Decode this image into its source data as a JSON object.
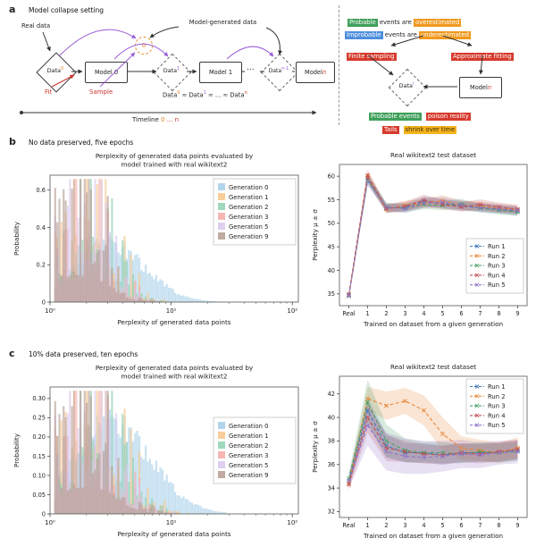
{
  "figure": {
    "panel_a": {
      "label": "a",
      "title": "Model collapse setting",
      "flow": {
        "real_data": "Real data",
        "fit": "Fit",
        "sample": "Sample",
        "model_generated": "Model-generated data",
        "nodes": {
          "data0_base": "Data",
          "data0_sup": "0",
          "model0": "Model 0",
          "circle0": "0",
          "data1_base": "Data",
          "data1_sup": "1",
          "model1": "Model 1",
          "dots": "...",
          "datan1_base": "Data",
          "datan1_sup": "n-1",
          "modeln_base": "Model ",
          "modeln_var": "n"
        },
        "equation": {
          "p1": "Data",
          "s1": "0",
          "p2": " ≈ Data",
          "s2": "1",
          "p3": " ≈ ... ≈ Data",
          "s3": "n"
        },
        "timeline": {
          "word": "Timeline ",
          "zero": "0",
          "dots": " ... ",
          "n": "n"
        }
      },
      "insight": {
        "line1": {
          "hl1": "Probable",
          "mid": " events are ",
          "hl2": "overestimated"
        },
        "line2": {
          "hl1": "Improbable",
          "mid": " events are ",
          "hl2": "underestimated"
        },
        "finite": "Finite sampling",
        "approx": "Approximate fitting",
        "datai_base": "Data",
        "datai_sup": "i",
        "modeln_base": "Model ",
        "modeln_var": "n",
        "line3": {
          "hl1": "Probable events",
          "hl2": "poison reality"
        },
        "line4": {
          "hl1": "Tails",
          "hl2": "shrink over time"
        }
      },
      "colors": {
        "green": "#3fa05a",
        "orange": "#f0991f",
        "blue": "#4d8edc",
        "red": "#d63a2c",
        "amber": "#f3b31b",
        "purple": "#9a5fd6",
        "sup_orange": "#e8832a"
      }
    },
    "panel_b": {
      "label": "b",
      "subtitle": "No data preserved, five epochs"
    },
    "panel_c": {
      "label": "c",
      "subtitle": "10% data preserved, ten epochs"
    }
  },
  "chart_data": [
    {
      "id": "b-left",
      "type": "histogram",
      "title": "Perplexity of generated data points evaluated by\nmodel trained with real wikitext2",
      "xlabel": "Perplexity of generated data points",
      "ylabel": "Probability",
      "x_scale": "log",
      "xlim_log10": [
        0,
        2.05
      ],
      "ylim": [
        0,
        0.68
      ],
      "yticks": [
        0,
        0.2,
        0.4,
        0.6
      ],
      "ytick_labels": [
        "0",
        "0.2",
        "0.4",
        "0.6"
      ],
      "xticks": [
        "10⁰",
        "10¹",
        "10²"
      ],
      "legend_pos": "top-right",
      "generations": [
        {
          "label": "Generation 0",
          "color": "#a6cee9",
          "mu": 0.48,
          "sigma": 0.3,
          "amp": 0.34,
          "smooth": true
        },
        {
          "label": "Generation 1",
          "color": "#f7c788",
          "mu": 0.33,
          "sigma": 0.22,
          "amp": 0.52
        },
        {
          "label": "Generation 2",
          "color": "#8ed1b2",
          "mu": 0.3,
          "sigma": 0.21,
          "amp": 0.55
        },
        {
          "label": "Generation 3",
          "color": "#f4a9a6",
          "mu": 0.28,
          "sigma": 0.21,
          "amp": 0.58
        },
        {
          "label": "Generation 5",
          "color": "#d9c6ec",
          "mu": 0.27,
          "sigma": 0.2,
          "amp": 0.6
        },
        {
          "label": "Generation 9",
          "color": "#b59b91",
          "mu": 0.25,
          "sigma": 0.2,
          "amp": 0.65
        }
      ]
    },
    {
      "id": "b-right",
      "type": "line",
      "title": "Real wikitext2 test dataset",
      "xlabel": "Trained on dataset from a given generation",
      "ylabel": "Perplexity μ ± σ",
      "categories": [
        "Real",
        "1",
        "2",
        "3",
        "4",
        "5",
        "6",
        "7",
        "8",
        "9"
      ],
      "ylim": [
        32.5,
        62.5
      ],
      "yticks": [
        35,
        40,
        45,
        50,
        55,
        60
      ],
      "legend_pos": "lower-right",
      "series": [
        {
          "name": "Run 1",
          "color": "#3f77b4",
          "values": [
            34.8,
            59.6,
            53.2,
            53.4,
            54.6,
            54.2,
            53.6,
            53.4,
            53.0,
            52.6
          ],
          "sigma": [
            0.4,
            1.0,
            0.9,
            0.9,
            1.1,
            1.0,
            1.0,
            0.9,
            0.9,
            0.9
          ]
        },
        {
          "name": "Run 2",
          "color": "#e8883a",
          "values": [
            34.6,
            59.9,
            53.0,
            53.8,
            54.2,
            54.8,
            53.8,
            53.6,
            53.2,
            52.9
          ],
          "sigma": [
            0.4,
            1.1,
            0.9,
            1.0,
            1.0,
            1.2,
            1.0,
            1.0,
            0.9,
            0.9
          ]
        },
        {
          "name": "Run 3",
          "color": "#47a065",
          "values": [
            34.7,
            59.2,
            53.5,
            53.2,
            54.0,
            53.8,
            54.1,
            53.2,
            52.8,
            52.4
          ],
          "sigma": [
            0.4,
            1.0,
            0.9,
            0.9,
            1.0,
            1.0,
            1.1,
            0.9,
            0.9,
            0.9
          ]
        },
        {
          "name": "Run 4",
          "color": "#c44e52",
          "values": [
            34.9,
            60.2,
            53.1,
            53.6,
            54.9,
            54.0,
            53.5,
            54.0,
            53.4,
            53.0
          ],
          "sigma": [
            0.4,
            1.2,
            0.9,
            1.0,
            1.2,
            1.0,
            1.0,
            1.1,
            1.0,
            0.9
          ]
        },
        {
          "name": "Run 5",
          "color": "#9472c9",
          "values": [
            34.5,
            59.0,
            53.4,
            53.1,
            54.3,
            54.5,
            53.9,
            53.3,
            53.1,
            52.7
          ],
          "sigma": [
            0.4,
            1.0,
            0.9,
            0.9,
            1.0,
            1.1,
            1.0,
            0.9,
            0.9,
            0.9
          ]
        }
      ]
    },
    {
      "id": "c-left",
      "type": "histogram",
      "title": "Perplexity of generated data points evaluated by\nmodel trained with real wikitext2",
      "xlabel": "Perplexity of generated data points",
      "ylabel": "Probability",
      "x_scale": "log",
      "xlim_log10": [
        0,
        2.05
      ],
      "ylim": [
        0,
        0.33
      ],
      "yticks": [
        0,
        0.05,
        0.1,
        0.15,
        0.2,
        0.25,
        0.3
      ],
      "ytick_labels": [
        "0",
        "0.05",
        "0.10",
        "0.15",
        "0.20",
        "0.25",
        "0.30"
      ],
      "xticks": [
        "10⁰",
        "10¹",
        "10²"
      ],
      "legend_pos": "right",
      "generations": [
        {
          "label": "Generation 0",
          "color": "#a6cee9",
          "mu": 0.5,
          "sigma": 0.33,
          "amp": 0.26,
          "smooth": true
        },
        {
          "label": "Generation 1",
          "color": "#f7c788",
          "mu": 0.36,
          "sigma": 0.26,
          "amp": 0.28
        },
        {
          "label": "Generation 2",
          "color": "#8ed1b2",
          "mu": 0.32,
          "sigma": 0.25,
          "amp": 0.29
        },
        {
          "label": "Generation 3",
          "color": "#f4a9a6",
          "mu": 0.3,
          "sigma": 0.24,
          "amp": 0.3
        },
        {
          "label": "Generation 5",
          "color": "#d9c6ec",
          "mu": 0.29,
          "sigma": 0.24,
          "amp": 0.3
        },
        {
          "label": "Generation 9",
          "color": "#b59b91",
          "mu": 0.28,
          "sigma": 0.23,
          "amp": 0.31
        }
      ]
    },
    {
      "id": "c-right",
      "type": "line",
      "title": "Real wikitext2 test dataset",
      "xlabel": "Trained on dataset from a given generation",
      "ylabel": "Perplexity μ ± σ",
      "categories": [
        "Real",
        "1",
        "2",
        "3",
        "4",
        "5",
        "6",
        "7",
        "8",
        "9"
      ],
      "ylim": [
        31.5,
        43.5
      ],
      "yticks": [
        32,
        34,
        36,
        38,
        40,
        42
      ],
      "legend_pos": "top-right",
      "series": [
        {
          "name": "Run 1",
          "color": "#3f77b4",
          "values": [
            34.6,
            40.6,
            37.6,
            37.0,
            37.0,
            36.8,
            37.0,
            37.0,
            37.0,
            37.2
          ],
          "sigma": [
            0.5,
            1.1,
            1.0,
            0.8,
            0.8,
            0.8,
            0.8,
            0.8,
            0.8,
            0.8
          ]
        },
        {
          "name": "Run 2",
          "color": "#e8883a",
          "values": [
            34.4,
            41.6,
            41.0,
            41.4,
            40.6,
            38.6,
            37.4,
            37.2,
            37.0,
            37.4
          ],
          "sigma": [
            0.5,
            1.0,
            1.2,
            1.1,
            1.3,
            1.4,
            1.0,
            0.9,
            0.9,
            0.9
          ]
        },
        {
          "name": "Run 3",
          "color": "#47a065",
          "values": [
            34.8,
            41.3,
            38.0,
            37.2,
            37.0,
            37.0,
            36.9,
            37.1,
            37.0,
            37.1
          ],
          "sigma": [
            0.5,
            1.9,
            1.4,
            1.0,
            0.9,
            0.9,
            0.8,
            0.8,
            0.8,
            0.8
          ]
        },
        {
          "name": "Run 4",
          "color": "#c44e52",
          "values": [
            34.3,
            40.0,
            37.4,
            37.1,
            36.9,
            36.8,
            37.0,
            36.9,
            37.1,
            37.3
          ],
          "sigma": [
            0.5,
            1.3,
            1.1,
            0.9,
            0.8,
            0.8,
            0.8,
            0.8,
            0.8,
            0.8
          ]
        },
        {
          "name": "Run 5",
          "color": "#9472c9",
          "values": [
            34.6,
            39.3,
            37.1,
            36.7,
            36.6,
            36.7,
            36.9,
            36.8,
            37.0,
            37.1
          ],
          "sigma": [
            0.6,
            1.7,
            1.6,
            1.5,
            1.4,
            1.3,
            1.2,
            1.1,
            1.0,
            1.0
          ]
        }
      ]
    }
  ]
}
